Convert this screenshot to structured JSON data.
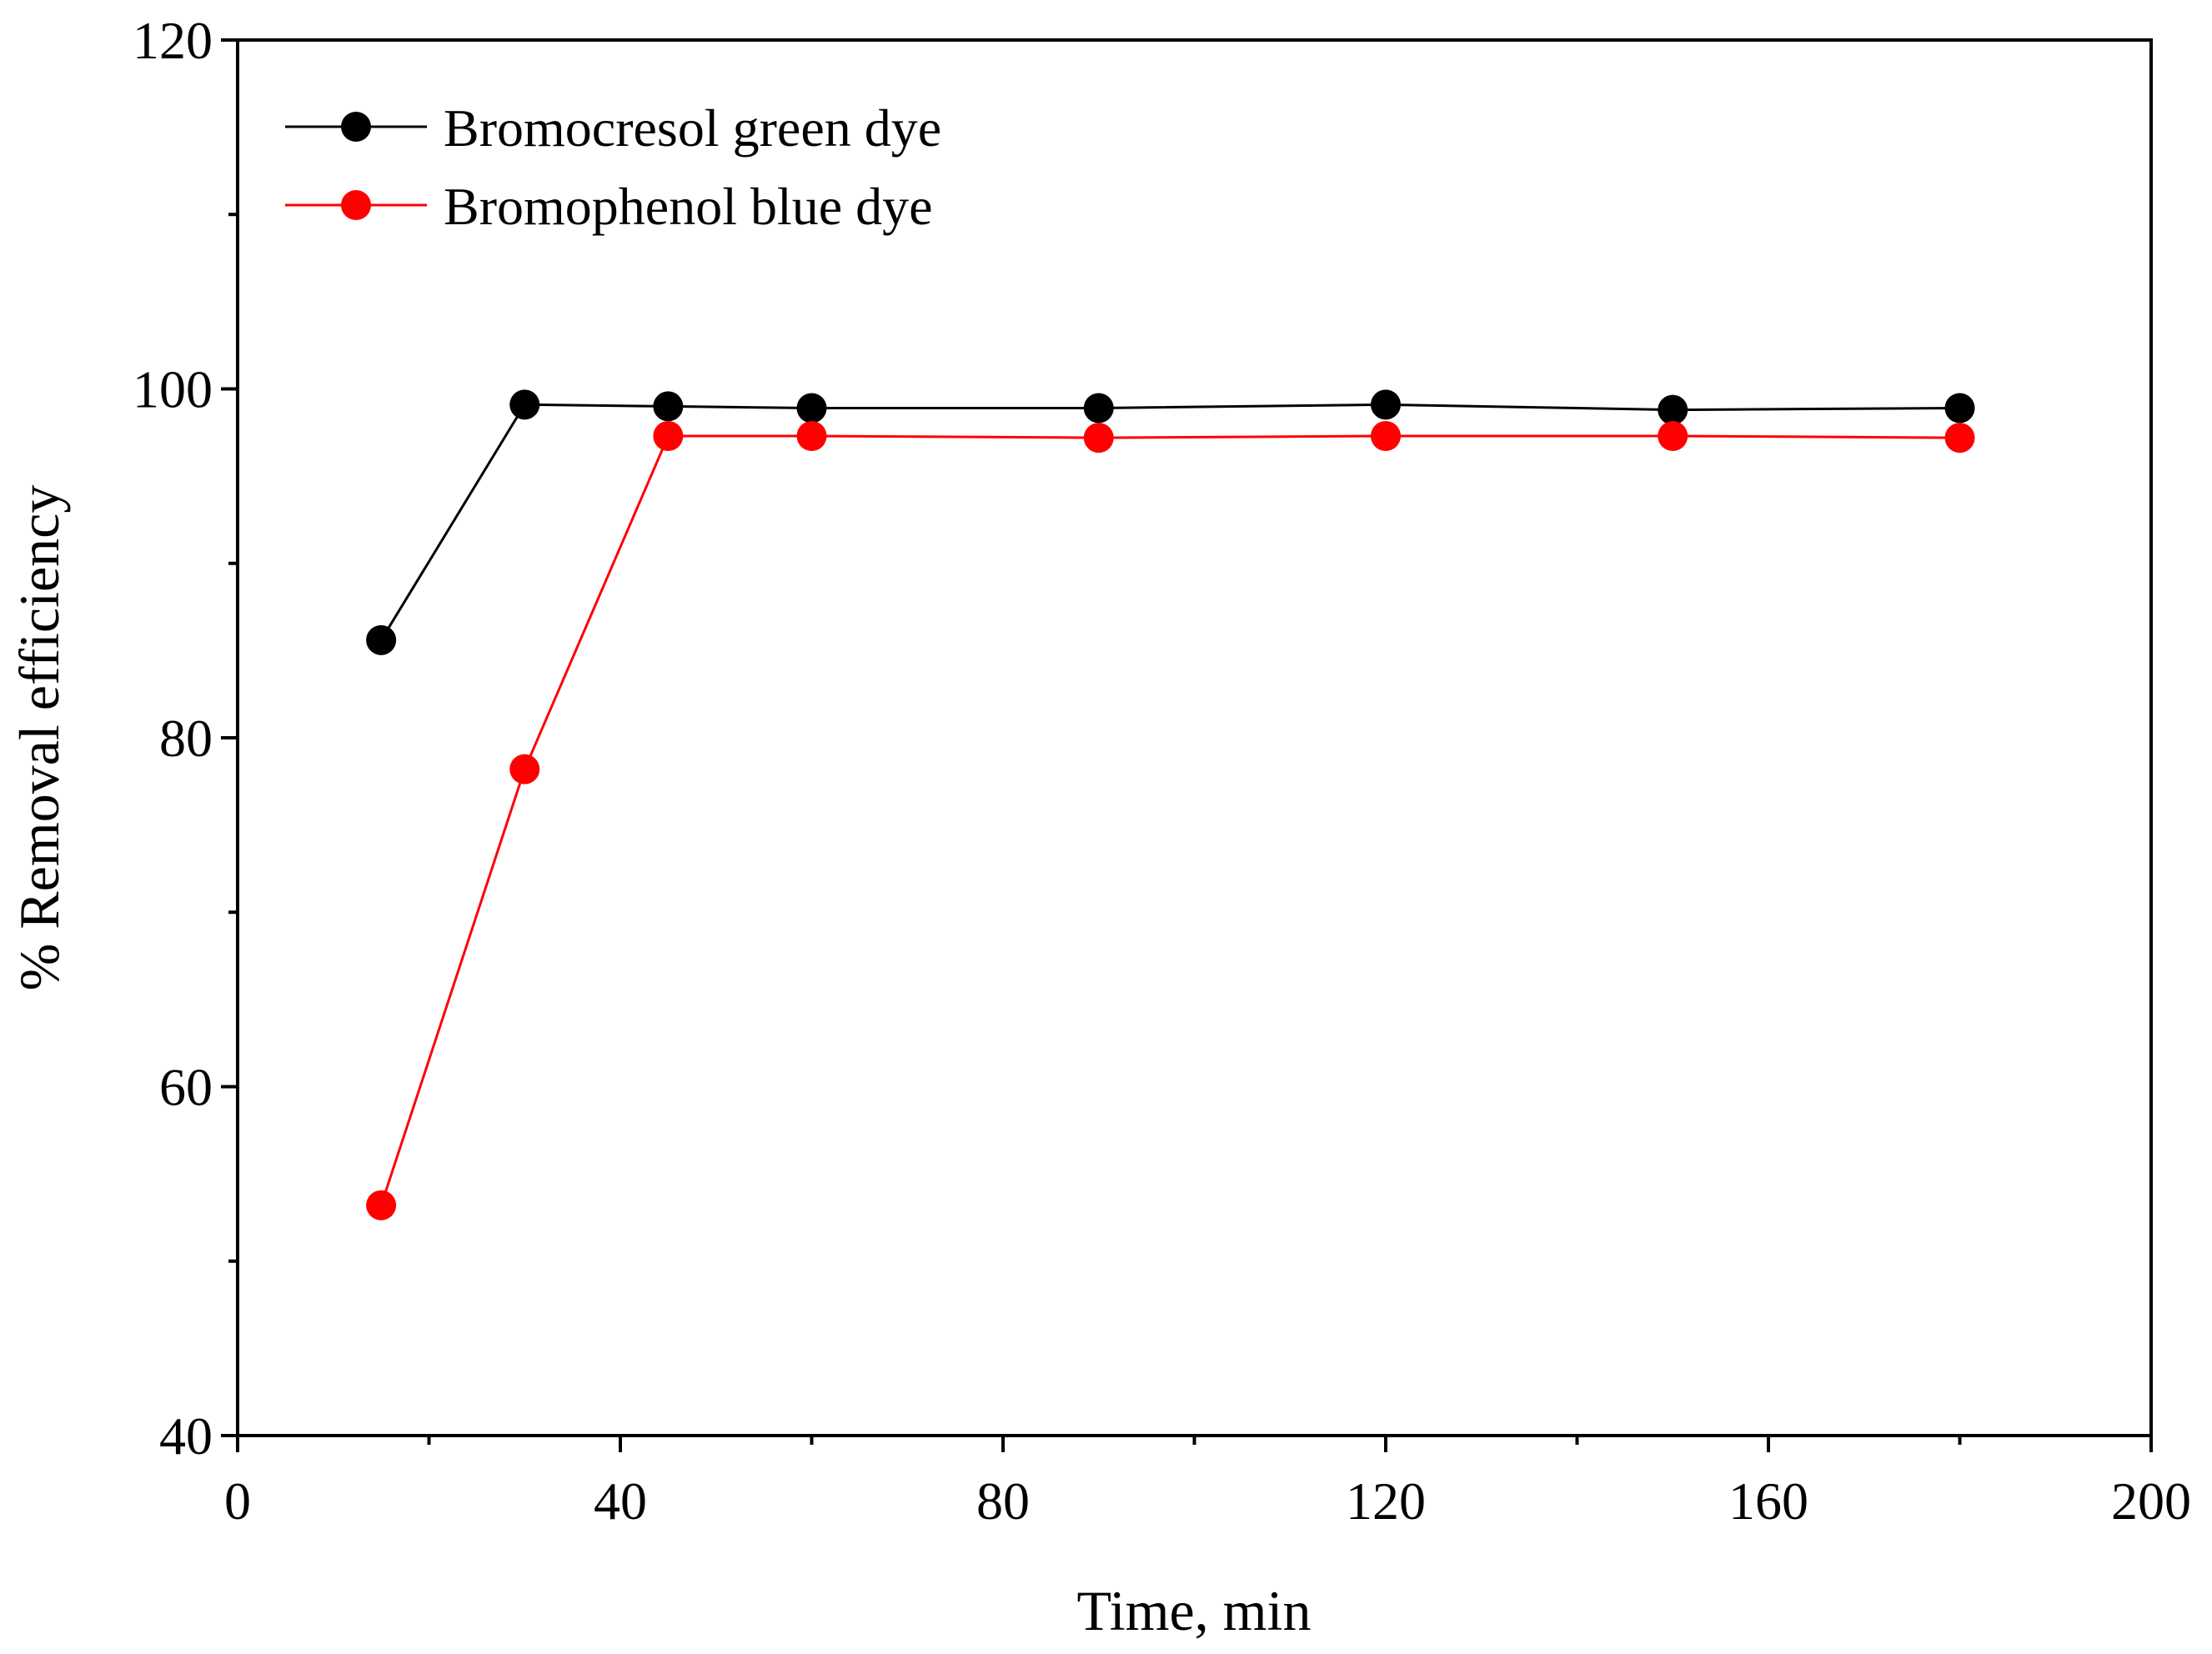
{
  "chart_data": {
    "type": "line",
    "title": "",
    "xlabel": "Time, min",
    "ylabel": "% Removal efficiency",
    "xlim": [
      0,
      200
    ],
    "ylim": [
      40,
      120
    ],
    "x_major_ticks": [
      0,
      40,
      80,
      120,
      160,
      200
    ],
    "x_minor_ticks": [
      20,
      60,
      100,
      140,
      180
    ],
    "y_major_ticks": [
      40,
      60,
      80,
      100,
      120
    ],
    "y_minor_ticks": [
      50,
      70,
      90,
      110
    ],
    "x_tick_labels": [
      "0",
      "40",
      "80",
      "120",
      "160",
      "200"
    ],
    "y_tick_labels": [
      "40",
      "60",
      "80",
      "100",
      "120"
    ],
    "grid": false,
    "legend_position": "top-left",
    "series": [
      {
        "name": "Bromocresol green dye",
        "color": "#000000",
        "x": [
          15,
          30,
          45,
          60,
          90,
          120,
          150,
          180
        ],
        "y": [
          85.6,
          99.1,
          99.0,
          98.9,
          98.9,
          99.1,
          98.8,
          98.9
        ]
      },
      {
        "name": "Bromophenol blue dye",
        "color": "#ff0000",
        "x": [
          15,
          30,
          45,
          60,
          90,
          120,
          150,
          180
        ],
        "y": [
          53.2,
          78.2,
          97.3,
          97.3,
          97.2,
          97.3,
          97.3,
          97.2
        ]
      }
    ]
  }
}
